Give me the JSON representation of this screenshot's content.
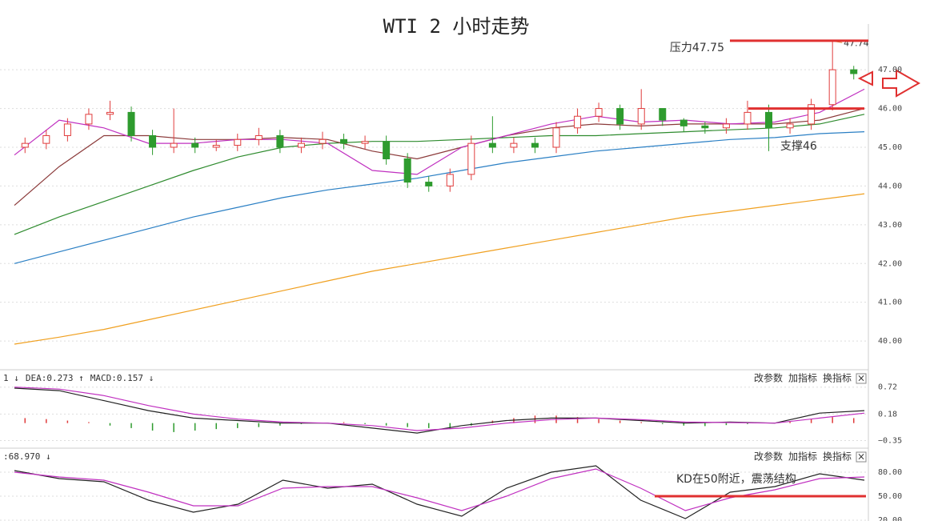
{
  "chart_data": [
    {
      "type": "candlestick",
      "title": "WTI 2 小时走势",
      "candles": {
        "open": [
          45.0,
          45.1,
          45.3,
          45.6,
          45.85,
          45.9,
          45.3,
          45.0,
          45.1,
          45.0,
          45.05,
          45.2,
          45.3,
          45.0,
          45.1,
          45.2,
          45.1,
          45.15,
          44.7,
          44.1,
          44.0,
          44.3,
          45.1,
          45.0,
          45.1,
          45.0,
          45.5,
          45.8,
          46.0,
          45.6,
          46.0,
          45.7,
          45.55,
          45.5,
          45.6,
          45.9,
          45.5,
          45.6,
          46.1,
          47.0
        ],
        "high": [
          45.25,
          45.45,
          45.75,
          46.0,
          46.2,
          46.05,
          45.45,
          46.0,
          45.25,
          45.2,
          45.35,
          45.5,
          45.45,
          45.25,
          45.4,
          45.35,
          45.3,
          45.3,
          44.85,
          44.25,
          44.45,
          45.3,
          45.8,
          45.25,
          45.25,
          45.65,
          46.0,
          46.15,
          46.1,
          46.5,
          45.9,
          45.75,
          45.65,
          45.75,
          46.2,
          46.1,
          45.75,
          46.25,
          47.74,
          47.1
        ],
        "low": [
          44.85,
          44.95,
          45.15,
          45.45,
          45.7,
          45.15,
          44.8,
          44.85,
          44.85,
          44.9,
          44.9,
          45.05,
          44.85,
          44.85,
          44.95,
          44.95,
          44.95,
          44.55,
          43.95,
          43.85,
          43.85,
          44.15,
          44.85,
          44.85,
          44.85,
          44.85,
          45.35,
          45.65,
          45.45,
          45.45,
          45.55,
          45.4,
          45.35,
          45.35,
          45.45,
          44.9,
          45.35,
          45.45,
          45.95,
          46.75
        ],
        "close": [
          45.1,
          45.3,
          45.6,
          45.85,
          45.9,
          45.3,
          45.0,
          45.1,
          45.0,
          45.05,
          45.2,
          45.3,
          45.0,
          45.1,
          45.2,
          45.1,
          45.15,
          44.7,
          44.1,
          44.0,
          44.3,
          45.1,
          45.0,
          45.1,
          45.0,
          45.5,
          45.8,
          46.0,
          45.6,
          46.0,
          45.7,
          45.55,
          45.5,
          45.6,
          45.9,
          45.5,
          45.6,
          46.1,
          47.0,
          46.9
        ]
      },
      "up_color": "#e03c3c",
      "down_color": "#2e9b2e",
      "series": [
        {
          "color": "#2a7fc4",
          "values": [
            42.0,
            42.3,
            42.6,
            42.9,
            43.2,
            43.45,
            43.7,
            43.9,
            44.05,
            44.2,
            44.4,
            44.6,
            44.75,
            44.9,
            45.0,
            45.1,
            45.2,
            45.25,
            45.35,
            45.4
          ]
        },
        {
          "color": "#f0a020",
          "values": [
            39.92,
            40.1,
            40.3,
            40.55,
            40.8,
            41.05,
            41.3,
            41.55,
            41.8,
            42.0,
            42.2,
            42.4,
            42.6,
            42.8,
            43.0,
            43.2,
            43.35,
            43.5,
            43.65,
            43.8
          ]
        },
        {
          "color": "#2e8b2e",
          "values": [
            42.75,
            43.2,
            43.6,
            44.0,
            44.4,
            44.75,
            45.0,
            45.1,
            45.15,
            45.15,
            45.2,
            45.25,
            45.3,
            45.3,
            45.35,
            45.4,
            45.45,
            45.5,
            45.6,
            45.85
          ]
        },
        {
          "color": "#8b3a3a",
          "values": [
            43.5,
            44.5,
            45.3,
            45.3,
            45.2,
            45.2,
            45.25,
            45.2,
            44.9,
            44.7,
            45.0,
            45.3,
            45.5,
            45.6,
            45.55,
            45.6,
            45.6,
            45.6,
            45.7,
            46.0
          ]
        },
        {
          "color": "#c030c0",
          "values": [
            44.8,
            45.7,
            45.5,
            45.1,
            45.1,
            45.2,
            45.2,
            45.1,
            44.4,
            44.3,
            45.0,
            45.3,
            45.6,
            45.8,
            45.65,
            45.7,
            45.6,
            45.65,
            45.9,
            46.5
          ]
        }
      ],
      "ylim": [
        39.3,
        48.18
      ],
      "yticks": [
        {
          "value": 40,
          "label": "40.00"
        },
        {
          "value": 41,
          "label": "41.00"
        },
        {
          "value": 42,
          "label": "42.00"
        },
        {
          "value": 43,
          "label": "43.00"
        },
        {
          "value": 44,
          "label": "44.00"
        },
        {
          "value": 45,
          "label": "45.00"
        },
        {
          "value": 46,
          "label": "46.00"
        },
        {
          "value": 47,
          "label": "47.00"
        }
      ],
      "grid": true,
      "annotations": [
        {
          "text": "压力47.75",
          "value": 47.75
        },
        {
          "text": "支撑46",
          "value": 46
        }
      ],
      "label_color": "#e04040",
      "line_color": "#e03030"
    },
    {
      "type": "macd",
      "header": [
        {
          "text": "1 ↓",
          "color": "#333333"
        },
        {
          "text": "DEA:0.273 ↑",
          "color": "#c030c0"
        },
        {
          "text": "MACD:0.157 ↓",
          "color": "#333333"
        }
      ],
      "buttons": [
        "改参数",
        "加指标",
        "换指标",
        "×"
      ],
      "histogram": [
        0.1,
        0.08,
        0.05,
        0.02,
        -0.05,
        -0.1,
        -0.15,
        -0.18,
        -0.15,
        -0.12,
        -0.1,
        -0.08,
        -0.05,
        -0.02,
        0.01,
        0.02,
        -0.02,
        -0.05,
        -0.08,
        -0.1,
        -0.12,
        -0.05,
        0.05,
        0.1,
        0.15,
        0.15,
        0.12,
        0.08,
        0.05,
        0.02,
        -0.02,
        -0.05,
        -0.06,
        -0.04,
        -0.02,
        0.01,
        0.03,
        0.08,
        0.12,
        0.1
      ],
      "up_color": "#e03c3c",
      "down_color": "#2e9b2e",
      "series": [
        {
          "color": "#222222",
          "values": [
            0.7,
            0.65,
            0.45,
            0.25,
            0.1,
            0.05,
            0.0,
            0.0,
            -0.1,
            -0.2,
            -0.05,
            0.05,
            0.1,
            0.1,
            0.05,
            0.0,
            0.02,
            0.0,
            0.2,
            0.25
          ]
        },
        {
          "color": "#c030c0",
          "values": [
            0.72,
            0.68,
            0.55,
            0.35,
            0.18,
            0.08,
            0.02,
            0.0,
            -0.05,
            -0.15,
            -0.1,
            0.0,
            0.07,
            0.1,
            0.07,
            0.02,
            0.01,
            0.0,
            0.1,
            0.2
          ]
        }
      ],
      "ylim": [
        -0.47,
        1.02
      ],
      "yticks": [
        {
          "value": -0.35,
          "label": "−0.35"
        },
        0.18,
        0.72
      ]
    },
    {
      "type": "kd",
      "header": [
        {
          "text": ":68.970 ↓",
          "color": "#c030c0"
        }
      ],
      "buttons": [
        "改参数",
        "加指标",
        "换指标",
        "×"
      ],
      "series": [
        {
          "color": "#222222",
          "values": [
            82,
            72,
            68,
            45,
            30,
            40,
            70,
            60,
            65,
            40,
            25,
            60,
            80,
            88,
            45,
            22,
            55,
            62,
            78,
            70
          ]
        },
        {
          "color": "#c030c0",
          "values": [
            80,
            74,
            70,
            55,
            38,
            38,
            60,
            62,
            62,
            48,
            32,
            50,
            72,
            84,
            60,
            32,
            48,
            58,
            72,
            74
          ]
        }
      ],
      "ylim": [
        19,
        107
      ],
      "yticks": [
        {
          "value": 20,
          "label": "20.00"
        },
        {
          "value": 50,
          "label": "50.00"
        },
        {
          "value": 80,
          "label": "80.00"
        }
      ],
      "annotations": [
        {
          "text": "KD在50附近，震荡结构",
          "value": 50
        }
      ],
      "label_color": "#e04040",
      "line_color": "#e03030"
    }
  ]
}
